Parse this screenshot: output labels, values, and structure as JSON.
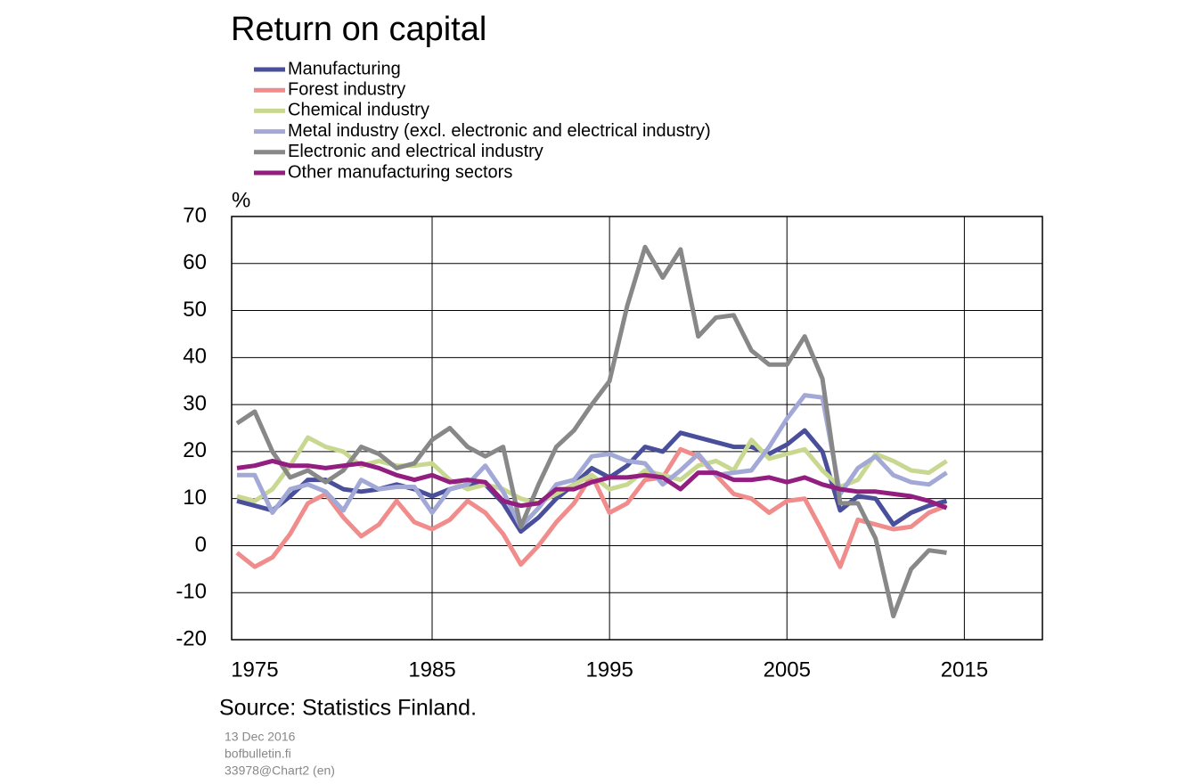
{
  "chart_data": {
    "type": "line",
    "title": "Return on capital",
    "y_unit": "%",
    "x": [
      1974,
      1975,
      1976,
      1977,
      1978,
      1979,
      1980,
      1981,
      1982,
      1983,
      1984,
      1985,
      1986,
      1987,
      1988,
      1989,
      1990,
      1991,
      1992,
      1993,
      1994,
      1995,
      1996,
      1997,
      1998,
      1999,
      2000,
      2001,
      2002,
      2003,
      2004,
      2005,
      2006,
      2007,
      2008,
      2009,
      2010,
      2011,
      2012,
      2013,
      2014
    ],
    "series": [
      {
        "name": "Manufacturing",
        "color": "#4a4f9c",
        "values": [
          9.5,
          8.5,
          7.5,
          10.5,
          14,
          14,
          12,
          11.5,
          12,
          13,
          12,
          10.5,
          12,
          13,
          13,
          9,
          3,
          6,
          10,
          13,
          16.5,
          14.5,
          17,
          21,
          20,
          24,
          23,
          22,
          21,
          21,
          19.5,
          21.5,
          24.5,
          20,
          7.5,
          10.5,
          10,
          4.5,
          7,
          8.5,
          9.5
        ]
      },
      {
        "name": "Forest industry",
        "color": "#f08c8c",
        "values": [
          -1.5,
          -4.5,
          -2.5,
          2.5,
          9,
          11,
          6,
          2,
          4.5,
          9.5,
          5,
          3.5,
          5.5,
          9.5,
          7,
          2.5,
          -4,
          0,
          5,
          9,
          15,
          7,
          9,
          14,
          14.5,
          20.5,
          19,
          15,
          11,
          10,
          7,
          9.5,
          10,
          3,
          -4.5,
          5.5,
          4.5,
          3.5,
          4,
          7,
          8.5
        ]
      },
      {
        "name": "Chemical industry",
        "color": "#c8d890",
        "values": [
          10.5,
          9.5,
          12,
          17,
          23,
          21,
          20,
          17,
          18,
          17,
          17,
          17.5,
          14,
          12,
          13,
          12,
          10,
          9,
          11,
          13,
          15,
          12,
          13,
          16,
          15,
          14,
          17,
          18,
          16,
          22.5,
          18.5,
          19.5,
          20.5,
          16,
          12.5,
          14,
          19.5,
          18,
          16,
          15.5,
          18
        ]
      },
      {
        "name": "Metal industry (excl. electronic and electrical industry)",
        "color": "#a3a9d6",
        "values": [
          15,
          15,
          7,
          12,
          13,
          11.5,
          7.5,
          14,
          12,
          12.5,
          12.5,
          7,
          12,
          13,
          17,
          11.5,
          4,
          8,
          13,
          14,
          19,
          19.5,
          18,
          17.5,
          13,
          16,
          19.5,
          15,
          15.5,
          16,
          21,
          27,
          32,
          31.5,
          11,
          16.5,
          19,
          15,
          13.5,
          13,
          15.5
        ]
      },
      {
        "name": "Electronic and electrical industry",
        "color": "#888888",
        "values": [
          26,
          28.5,
          20,
          14.5,
          16,
          13.5,
          16,
          21,
          19.5,
          16.5,
          17.5,
          22.5,
          25,
          21,
          19,
          21,
          4,
          13,
          21,
          24.5,
          30,
          35,
          51,
          63.5,
          57,
          63,
          44.5,
          48.5,
          49,
          41.5,
          38.5,
          38.5,
          44.5,
          35.5,
          9,
          9,
          1.5,
          -15,
          -5,
          -1,
          -1.5
        ]
      },
      {
        "name": "Other manufacturing sectors",
        "color": "#921f7f",
        "values": [
          16.5,
          17,
          18,
          17,
          17,
          16.5,
          17,
          17.5,
          16.5,
          15,
          14,
          15,
          13.5,
          14,
          13.5,
          9.5,
          8.5,
          9,
          12,
          12,
          13.5,
          14.5,
          14.5,
          15,
          14.5,
          12,
          15.5,
          15.5,
          14,
          14,
          14.5,
          13.5,
          14.5,
          13,
          12,
          11.5,
          11.5,
          11,
          10.5,
          9.5,
          8
        ]
      }
    ],
    "xlim": [
      1973.7,
      2019.4
    ],
    "xticks": [
      1975,
      1985,
      1995,
      2005,
      2015
    ],
    "ylim": [
      -20,
      70
    ],
    "yticks": [
      -20,
      -10,
      0,
      10,
      20,
      30,
      40,
      50,
      60,
      70
    ],
    "grid": true,
    "source": "Source: Statistics Finland.",
    "notes": [
      "13 Dec 2016",
      "bofbulletin.fi",
      "33978@Chart2 (en)"
    ]
  }
}
